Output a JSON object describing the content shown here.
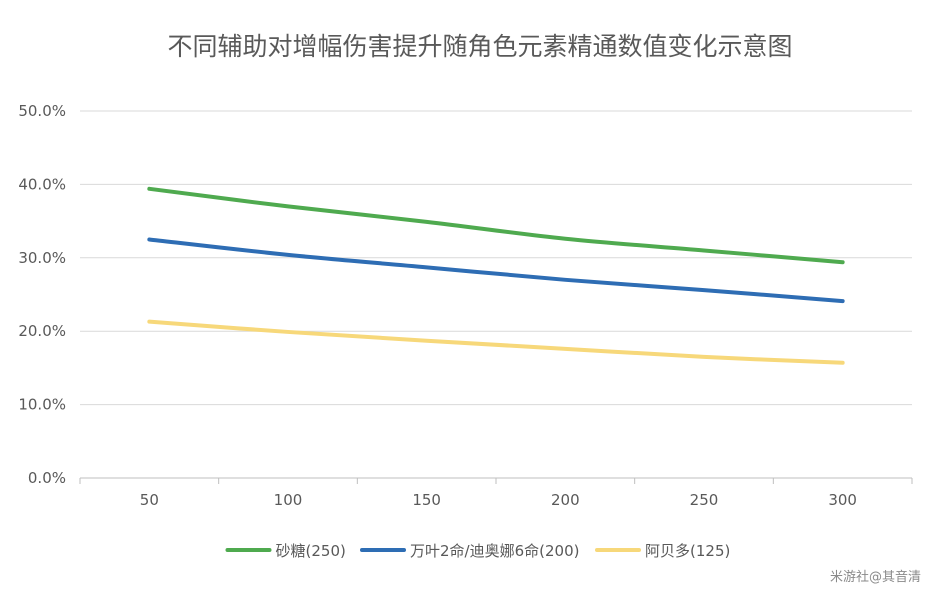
{
  "chart_data": {
    "type": "line",
    "title": "不同辅助对增幅伤害提升随角色元素精通数值变化示意图",
    "xlabel": "",
    "ylabel": "",
    "x": [
      50,
      100,
      150,
      200,
      250,
      300
    ],
    "x_tick_labels": [
      "50",
      "100",
      "150",
      "200",
      "250",
      "300"
    ],
    "ylim": [
      0,
      0.5
    ],
    "y_ticks": [
      0,
      0.1,
      0.2,
      0.3,
      0.4,
      0.5
    ],
    "y_tick_labels": [
      "0.0%",
      "10.0%",
      "20.0%",
      "30.0%",
      "40.0%",
      "50.0%"
    ],
    "grid": "horizontal",
    "legend_position": "bottom",
    "series": [
      {
        "name": "砂糖(250)",
        "color": "#4faa4f",
        "values": [
          0.394,
          0.37,
          0.349,
          0.326,
          0.31,
          0.294
        ]
      },
      {
        "name": "万叶2命/迪奥娜6命(200)",
        "color": "#2e6db4",
        "values": [
          0.325,
          0.304,
          0.287,
          0.27,
          0.256,
          0.241
        ]
      },
      {
        "name": "阿贝多(125)",
        "color": "#f7d87a",
        "values": [
          0.213,
          0.199,
          0.187,
          0.176,
          0.165,
          0.157
        ]
      }
    ]
  },
  "watermark": "米游社@其音清"
}
